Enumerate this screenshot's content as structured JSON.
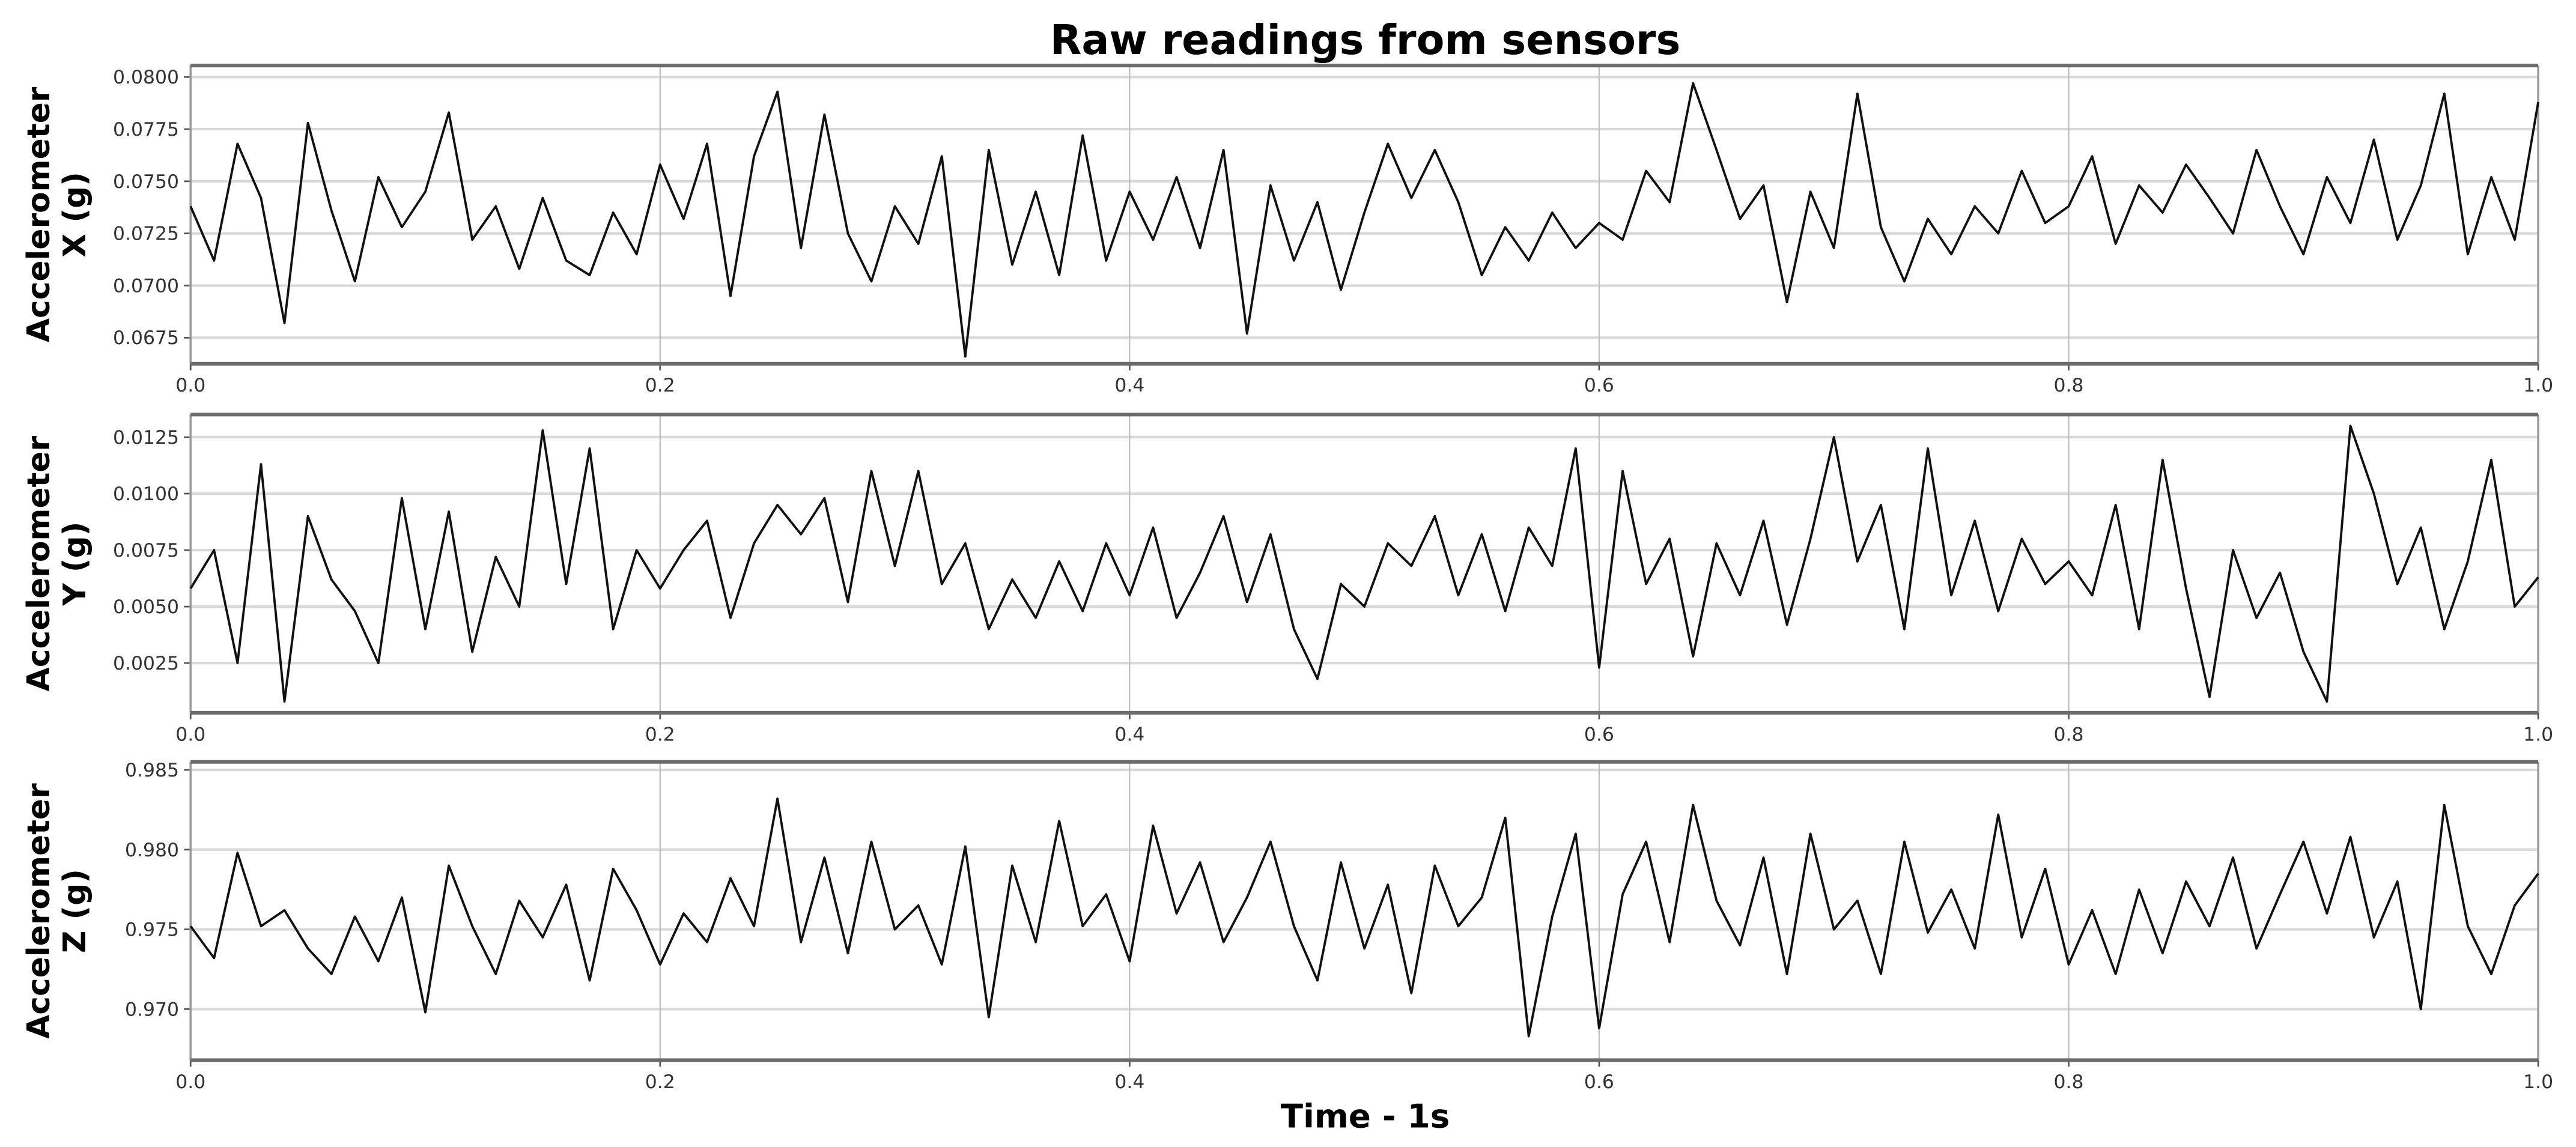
{
  "figure": {
    "title": "Raw readings from sensors",
    "xlabel": "Time - 1s"
  },
  "colors": {
    "line": "#111111",
    "grid": "#d9d9d9",
    "frame": "#6b6b6b",
    "background": "#ffffff"
  },
  "chart_data": [
    {
      "type": "line",
      "title": "Raw readings from sensors",
      "panel": "top",
      "series_name": "Accelerometer X",
      "ylabel": "Accelerometer X (g)",
      "xlabel": "",
      "xlim": [
        0.0,
        1.0
      ],
      "ylim": [
        0.06625,
        0.08055
      ],
      "xticks": [
        "0.0",
        "0.2",
        "0.4",
        "0.6",
        "0.8",
        "1.0"
      ],
      "yticks": [
        "0.0675",
        "0.0700",
        "0.0725",
        "0.0750",
        "0.0775",
        "0.0800"
      ],
      "ytick_values": [
        0.0675,
        0.07,
        0.0725,
        0.075,
        0.0775,
        0.08
      ],
      "grid": true,
      "x": [
        0.0,
        0.01,
        0.02,
        0.03,
        0.04,
        0.05,
        0.06,
        0.07,
        0.08,
        0.09,
        0.1,
        0.11,
        0.12,
        0.13,
        0.14,
        0.15,
        0.16,
        0.17,
        0.18,
        0.19,
        0.2,
        0.21,
        0.22,
        0.23,
        0.24,
        0.25,
        0.26,
        0.27,
        0.28,
        0.29,
        0.3,
        0.31,
        0.32,
        0.33,
        0.34,
        0.35,
        0.36,
        0.37,
        0.38,
        0.39,
        0.4,
        0.41,
        0.42,
        0.43,
        0.44,
        0.45,
        0.46,
        0.47,
        0.48,
        0.49,
        0.5,
        0.51,
        0.52,
        0.53,
        0.54,
        0.55,
        0.56,
        0.57,
        0.58,
        0.59,
        0.6,
        0.61,
        0.62,
        0.63,
        0.64,
        0.65,
        0.66,
        0.67,
        0.68,
        0.69,
        0.7,
        0.71,
        0.72,
        0.73,
        0.74,
        0.75,
        0.76,
        0.77,
        0.78,
        0.79,
        0.8,
        0.81,
        0.82,
        0.83,
        0.84,
        0.85,
        0.86,
        0.87,
        0.88,
        0.89,
        0.9,
        0.91,
        0.92,
        0.93,
        0.94,
        0.95,
        0.96,
        0.97,
        0.98,
        0.99,
        1.0
      ],
      "values": [
        0.0738,
        0.0712,
        0.0768,
        0.0742,
        0.0682,
        0.0778,
        0.0736,
        0.0702,
        0.0752,
        0.0728,
        0.0745,
        0.0783,
        0.0722,
        0.0738,
        0.0708,
        0.0742,
        0.0712,
        0.0705,
        0.0735,
        0.0715,
        0.0758,
        0.0732,
        0.0768,
        0.0695,
        0.0762,
        0.0793,
        0.0718,
        0.0782,
        0.0725,
        0.0702,
        0.0738,
        0.072,
        0.0762,
        0.0666,
        0.0765,
        0.071,
        0.0745,
        0.0705,
        0.0772,
        0.0712,
        0.0745,
        0.0722,
        0.0752,
        0.0718,
        0.0765,
        0.0677,
        0.0748,
        0.0712,
        0.074,
        0.0698,
        0.0735,
        0.0768,
        0.0742,
        0.0765,
        0.074,
        0.0705,
        0.0728,
        0.0712,
        0.0735,
        0.0718,
        0.073,
        0.0722,
        0.0755,
        0.074,
        0.0797,
        0.0765,
        0.0732,
        0.0748,
        0.0692,
        0.0745,
        0.0718,
        0.0792,
        0.0728,
        0.0702,
        0.0732,
        0.0715,
        0.0738,
        0.0725,
        0.0755,
        0.073,
        0.0738,
        0.0762,
        0.072,
        0.0748,
        0.0735,
        0.0758,
        0.0742,
        0.0725,
        0.0765,
        0.0738,
        0.0715,
        0.0752,
        0.073,
        0.077,
        0.0722,
        0.0748,
        0.0792,
        0.0715,
        0.0752,
        0.0722,
        0.0788
      ]
    },
    {
      "type": "line",
      "panel": "middle",
      "series_name": "Accelerometer Y",
      "ylabel": "Accelerometer Y (g)",
      "xlabel": "",
      "xlim": [
        0.0,
        1.0
      ],
      "ylim": [
        0.0003,
        0.0135
      ],
      "xticks": [
        "0.0",
        "0.2",
        "0.4",
        "0.6",
        "0.8",
        "1.0"
      ],
      "yticks": [
        "0.0025",
        "0.0050",
        "0.0075",
        "0.0100",
        "0.0125"
      ],
      "ytick_values": [
        0.0025,
        0.005,
        0.0075,
        0.01,
        0.0125
      ],
      "grid": true,
      "x": [
        0.0,
        0.01,
        0.02,
        0.03,
        0.04,
        0.05,
        0.06,
        0.07,
        0.08,
        0.09,
        0.1,
        0.11,
        0.12,
        0.13,
        0.14,
        0.15,
        0.16,
        0.17,
        0.18,
        0.19,
        0.2,
        0.21,
        0.22,
        0.23,
        0.24,
        0.25,
        0.26,
        0.27,
        0.28,
        0.29,
        0.3,
        0.31,
        0.32,
        0.33,
        0.34,
        0.35,
        0.36,
        0.37,
        0.38,
        0.39,
        0.4,
        0.41,
        0.42,
        0.43,
        0.44,
        0.45,
        0.46,
        0.47,
        0.48,
        0.49,
        0.5,
        0.51,
        0.52,
        0.53,
        0.54,
        0.55,
        0.56,
        0.57,
        0.58,
        0.59,
        0.6,
        0.61,
        0.62,
        0.63,
        0.64,
        0.65,
        0.66,
        0.67,
        0.68,
        0.69,
        0.7,
        0.71,
        0.72,
        0.73,
        0.74,
        0.75,
        0.76,
        0.77,
        0.78,
        0.79,
        0.8,
        0.81,
        0.82,
        0.83,
        0.84,
        0.85,
        0.86,
        0.87,
        0.88,
        0.89,
        0.9,
        0.91,
        0.92,
        0.93,
        0.94,
        0.95,
        0.96,
        0.97,
        0.98,
        0.99,
        1.0
      ],
      "values": [
        0.0058,
        0.0075,
        0.0025,
        0.0113,
        0.0008,
        0.009,
        0.0062,
        0.0048,
        0.0025,
        0.0098,
        0.004,
        0.0092,
        0.003,
        0.0072,
        0.005,
        0.0128,
        0.006,
        0.012,
        0.004,
        0.0075,
        0.0058,
        0.0075,
        0.0088,
        0.0045,
        0.0078,
        0.0095,
        0.0082,
        0.0098,
        0.0052,
        0.011,
        0.0068,
        0.011,
        0.006,
        0.0078,
        0.004,
        0.0062,
        0.0045,
        0.007,
        0.0048,
        0.0078,
        0.0055,
        0.0085,
        0.0045,
        0.0065,
        0.009,
        0.0052,
        0.0082,
        0.004,
        0.0018,
        0.006,
        0.005,
        0.0078,
        0.0068,
        0.009,
        0.0055,
        0.0082,
        0.0048,
        0.0085,
        0.0068,
        0.012,
        0.0023,
        0.011,
        0.006,
        0.008,
        0.0028,
        0.0078,
        0.0055,
        0.0088,
        0.0042,
        0.008,
        0.0125,
        0.007,
        0.0095,
        0.004,
        0.012,
        0.0055,
        0.0088,
        0.0048,
        0.008,
        0.006,
        0.007,
        0.0055,
        0.0095,
        0.004,
        0.0115,
        0.0058,
        0.001,
        0.0075,
        0.0045,
        0.0065,
        0.003,
        0.0008,
        0.013,
        0.01,
        0.006,
        0.0085,
        0.004,
        0.007,
        0.0115,
        0.005,
        0.0063
      ]
    },
    {
      "type": "line",
      "panel": "bottom",
      "series_name": "Accelerometer Z",
      "ylabel": "Accelerometer Z (g)",
      "xlabel": "Time - 1s",
      "xlim": [
        0.0,
        1.0
      ],
      "ylim": [
        0.9668,
        0.9855
      ],
      "xticks": [
        "0.0",
        "0.2",
        "0.4",
        "0.6",
        "0.8",
        "1.0"
      ],
      "yticks": [
        "0.970",
        "0.975",
        "0.980",
        "0.985"
      ],
      "ytick_values": [
        0.97,
        0.975,
        0.98,
        0.985
      ],
      "grid": true,
      "x": [
        0.0,
        0.01,
        0.02,
        0.03,
        0.04,
        0.05,
        0.06,
        0.07,
        0.08,
        0.09,
        0.1,
        0.11,
        0.12,
        0.13,
        0.14,
        0.15,
        0.16,
        0.17,
        0.18,
        0.19,
        0.2,
        0.21,
        0.22,
        0.23,
        0.24,
        0.25,
        0.26,
        0.27,
        0.28,
        0.29,
        0.3,
        0.31,
        0.32,
        0.33,
        0.34,
        0.35,
        0.36,
        0.37,
        0.38,
        0.39,
        0.4,
        0.41,
        0.42,
        0.43,
        0.44,
        0.45,
        0.46,
        0.47,
        0.48,
        0.49,
        0.5,
        0.51,
        0.52,
        0.53,
        0.54,
        0.55,
        0.56,
        0.57,
        0.58,
        0.59,
        0.6,
        0.61,
        0.62,
        0.63,
        0.64,
        0.65,
        0.66,
        0.67,
        0.68,
        0.69,
        0.7,
        0.71,
        0.72,
        0.73,
        0.74,
        0.75,
        0.76,
        0.77,
        0.78,
        0.79,
        0.8,
        0.81,
        0.82,
        0.83,
        0.84,
        0.85,
        0.86,
        0.87,
        0.88,
        0.89,
        0.9,
        0.91,
        0.92,
        0.93,
        0.94,
        0.95,
        0.96,
        0.97,
        0.98,
        0.99,
        1.0
      ],
      "values": [
        0.9752,
        0.9732,
        0.9798,
        0.9752,
        0.9762,
        0.9738,
        0.9722,
        0.9758,
        0.973,
        0.977,
        0.9698,
        0.979,
        0.9752,
        0.9722,
        0.9768,
        0.9745,
        0.9778,
        0.9718,
        0.9788,
        0.9762,
        0.9728,
        0.976,
        0.9742,
        0.9782,
        0.9752,
        0.9832,
        0.9742,
        0.9795,
        0.9735,
        0.9805,
        0.975,
        0.9765,
        0.9728,
        0.9802,
        0.9695,
        0.979,
        0.9742,
        0.9818,
        0.9752,
        0.9772,
        0.973,
        0.9815,
        0.976,
        0.9792,
        0.9742,
        0.977,
        0.9805,
        0.9752,
        0.9718,
        0.9792,
        0.9738,
        0.9778,
        0.971,
        0.979,
        0.9752,
        0.977,
        0.982,
        0.9683,
        0.9758,
        0.981,
        0.9688,
        0.9772,
        0.9805,
        0.9742,
        0.9828,
        0.9768,
        0.974,
        0.9795,
        0.9722,
        0.981,
        0.975,
        0.9768,
        0.9722,
        0.9805,
        0.9748,
        0.9775,
        0.9738,
        0.9822,
        0.9745,
        0.9788,
        0.9728,
        0.9762,
        0.9722,
        0.9775,
        0.9735,
        0.978,
        0.9752,
        0.9795,
        0.9738,
        0.9772,
        0.9805,
        0.976,
        0.9808,
        0.9745,
        0.978,
        0.97,
        0.9828,
        0.9752,
        0.9722,
        0.9765,
        0.9785
      ]
    }
  ]
}
